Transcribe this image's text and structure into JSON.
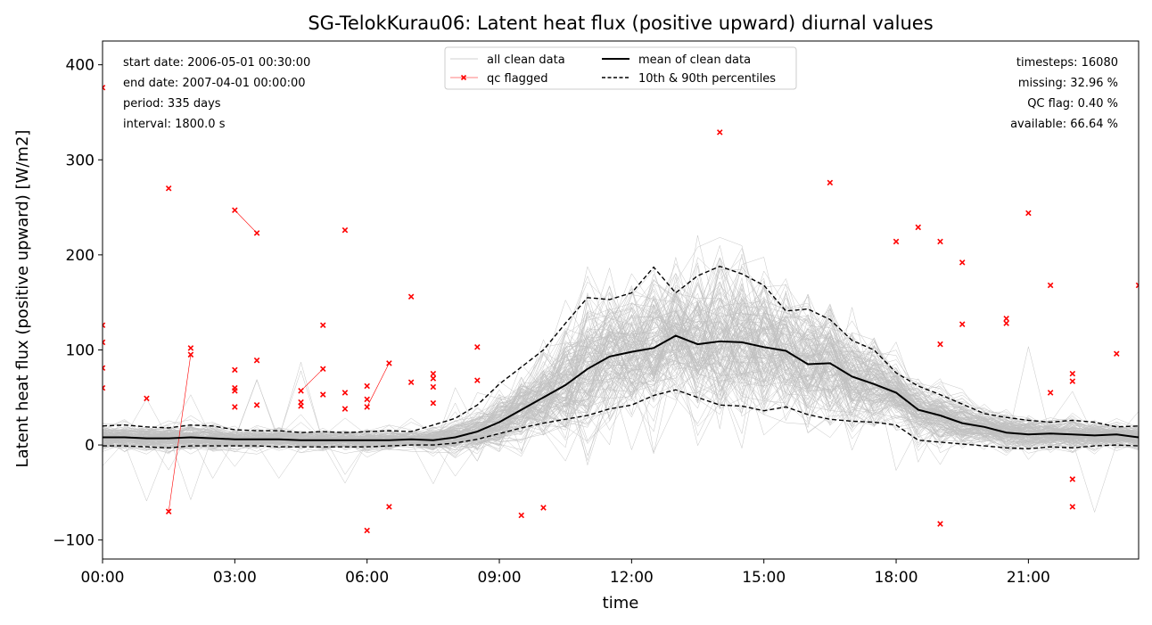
{
  "chart_data": {
    "type": "line",
    "title": "SG-TelokKurau06: Latent heat flux (positive upward) diurnal values",
    "xlabel": "time",
    "ylabel": "Latent heat flux (positive upward) [W/m2]",
    "xlim_hours": [
      0,
      23.5
    ],
    "ylim": [
      -120,
      425
    ],
    "grid": false,
    "x_ticks": [
      {
        "value": 0,
        "label": "00:00"
      },
      {
        "value": 3,
        "label": "03:00"
      },
      {
        "value": 6,
        "label": "06:00"
      },
      {
        "value": 9,
        "label": "09:00"
      },
      {
        "value": 12,
        "label": "12:00"
      },
      {
        "value": 15,
        "label": "15:00"
      },
      {
        "value": 18,
        "label": "18:00"
      },
      {
        "value": 21,
        "label": "21:00"
      }
    ],
    "y_ticks": [
      {
        "value": -100,
        "label": "−100"
      },
      {
        "value": 0,
        "label": "0"
      },
      {
        "value": 100,
        "label": "100"
      },
      {
        "value": 200,
        "label": "200"
      },
      {
        "value": 300,
        "label": "300"
      },
      {
        "value": 400,
        "label": "400"
      }
    ],
    "legend": {
      "placement": "top-center",
      "entries": [
        {
          "label": "all clean data",
          "color": "#c0c0c0",
          "style": "thin-line"
        },
        {
          "label": "qc flagged",
          "color": "#ff0000",
          "style": "line-x-marker"
        },
        {
          "label": "mean of clean data",
          "color": "#000000",
          "style": "solid"
        },
        {
          "label": "10th & 90th percentiles",
          "color": "#000000",
          "style": "dashed"
        }
      ]
    },
    "info_left": [
      "start date: 2006-05-01 00:30:00",
      "end date: 2007-04-01 00:00:00",
      "period: 335 days",
      "interval: 1800.0 s"
    ],
    "info_right": [
      "timesteps: 16080",
      "missing: 32.96 %",
      "QC flag: 0.40 %",
      "available: 66.64 %"
    ],
    "x": [
      0,
      0.5,
      1,
      1.5,
      2,
      2.5,
      3,
      3.5,
      4,
      4.5,
      5,
      5.5,
      6,
      6.5,
      7,
      7.5,
      8,
      8.5,
      9,
      9.5,
      10,
      10.5,
      11,
      11.5,
      12,
      12.5,
      13,
      13.5,
      14,
      14.5,
      15,
      15.5,
      16,
      16.5,
      17,
      17.5,
      18,
      18.5,
      19,
      19.5,
      20,
      20.5,
      21,
      21.5,
      22,
      22.5,
      23,
      23.5
    ],
    "series": [
      {
        "name": "mean of clean data",
        "color": "#000000",
        "style": "solid",
        "values": [
          8,
          8,
          7,
          7,
          8,
          7,
          6,
          6,
          6,
          5,
          5,
          5,
          5,
          5,
          6,
          5,
          8,
          14,
          24,
          37,
          50,
          63,
          80,
          93,
          98,
          102,
          115,
          106,
          109,
          108,
          103,
          99,
          85,
          86,
          72,
          64,
          55,
          37,
          31,
          23,
          19,
          13,
          11,
          12,
          11,
          10,
          11,
          8
        ]
      },
      {
        "name": "10th & 90th percentiles",
        "color": "#000000",
        "style": "dashed",
        "values": [
          20,
          21,
          19,
          18,
          21,
          20,
          16,
          15,
          15,
          13,
          14,
          13,
          14,
          15,
          14,
          21,
          28,
          42,
          64,
          82,
          100,
          128,
          155,
          153,
          160,
          187,
          160,
          178,
          188,
          180,
          168,
          141,
          143,
          132,
          110,
          100,
          76,
          62,
          53,
          43,
          33,
          29,
          26,
          24,
          26,
          24,
          19,
          20
        ]
      },
      {
        "name": "10th & 90th percentiles",
        "color": "#000000",
        "style": "dashed",
        "values": [
          -1,
          -1,
          -2,
          -3,
          -1,
          -1,
          -1,
          -1,
          -2,
          -2,
          -2,
          -2,
          -2,
          -1,
          0,
          0,
          2,
          6,
          12,
          18,
          23,
          27,
          31,
          38,
          42,
          52,
          58,
          50,
          42,
          41,
          36,
          40,
          32,
          27,
          25,
          24,
          21,
          5,
          3,
          1,
          -1,
          -3,
          -4,
          -2,
          -3,
          -1,
          0,
          -1
        ]
      }
    ],
    "qc_flagged": {
      "color": "#ff0000",
      "points": [
        {
          "x": 0,
          "y": 376
        },
        {
          "x": 0,
          "y": 126
        },
        {
          "x": 0,
          "y": 108
        },
        {
          "x": 0,
          "y": 81
        },
        {
          "x": 0,
          "y": 60
        },
        {
          "x": 1,
          "y": 49
        },
        {
          "x": 1.5,
          "y": 270
        },
        {
          "x": 1.5,
          "y": -70
        },
        {
          "x": 2,
          "y": 102
        },
        {
          "x": 2,
          "y": 95
        },
        {
          "x": 3,
          "y": 247
        },
        {
          "x": 3,
          "y": 79
        },
        {
          "x": 3,
          "y": 60
        },
        {
          "x": 3,
          "y": 57
        },
        {
          "x": 3,
          "y": 40
        },
        {
          "x": 3.5,
          "y": 223
        },
        {
          "x": 3.5,
          "y": 89
        },
        {
          "x": 3.5,
          "y": 42
        },
        {
          "x": 4.5,
          "y": 57
        },
        {
          "x": 4.5,
          "y": 45
        },
        {
          "x": 4.5,
          "y": 41
        },
        {
          "x": 5,
          "y": 126
        },
        {
          "x": 5,
          "y": 80
        },
        {
          "x": 5,
          "y": 53
        },
        {
          "x": 5.5,
          "y": 226
        },
        {
          "x": 5.5,
          "y": 55
        },
        {
          "x": 5.5,
          "y": 38
        },
        {
          "x": 6,
          "y": 62
        },
        {
          "x": 6,
          "y": 48
        },
        {
          "x": 6,
          "y": 40
        },
        {
          "x": 6,
          "y": -90
        },
        {
          "x": 6.5,
          "y": 86
        },
        {
          "x": 6.5,
          "y": -65
        },
        {
          "x": 7,
          "y": 156
        },
        {
          "x": 7,
          "y": 66
        },
        {
          "x": 7.5,
          "y": 75
        },
        {
          "x": 7.5,
          "y": 70
        },
        {
          "x": 7.5,
          "y": 61
        },
        {
          "x": 7.5,
          "y": 44
        },
        {
          "x": 8.5,
          "y": 103
        },
        {
          "x": 8.5,
          "y": 68
        },
        {
          "x": 9.5,
          "y": -74
        },
        {
          "x": 10,
          "y": -66
        },
        {
          "x": 14,
          "y": 329
        },
        {
          "x": 16.5,
          "y": 276
        },
        {
          "x": 18,
          "y": 214
        },
        {
          "x": 18.5,
          "y": 229
        },
        {
          "x": 19,
          "y": 214
        },
        {
          "x": 19,
          "y": 106
        },
        {
          "x": 19,
          "y": -83
        },
        {
          "x": 19.5,
          "y": 192
        },
        {
          "x": 19.5,
          "y": 127
        },
        {
          "x": 20.5,
          "y": 133
        },
        {
          "x": 20.5,
          "y": 128
        },
        {
          "x": 21,
          "y": 244
        },
        {
          "x": 21.5,
          "y": 168
        },
        {
          "x": 21.5,
          "y": 55
        },
        {
          "x": 22,
          "y": 75
        },
        {
          "x": 22,
          "y": 67
        },
        {
          "x": 22,
          "y": -36
        },
        {
          "x": 22,
          "y": -65
        },
        {
          "x": 23,
          "y": 96
        },
        {
          "x": 23.5,
          "y": 168
        }
      ],
      "segments": [
        {
          "x1": 1.5,
          "y1": -70,
          "x2": 2,
          "y2": 95
        },
        {
          "x1": 3,
          "y1": 247,
          "x2": 3.5,
          "y2": 223
        },
        {
          "x1": 4.5,
          "y1": 57,
          "x2": 5,
          "y2": 80
        },
        {
          "x1": 6,
          "y1": 40,
          "x2": 6.5,
          "y2": 86
        }
      ]
    }
  }
}
